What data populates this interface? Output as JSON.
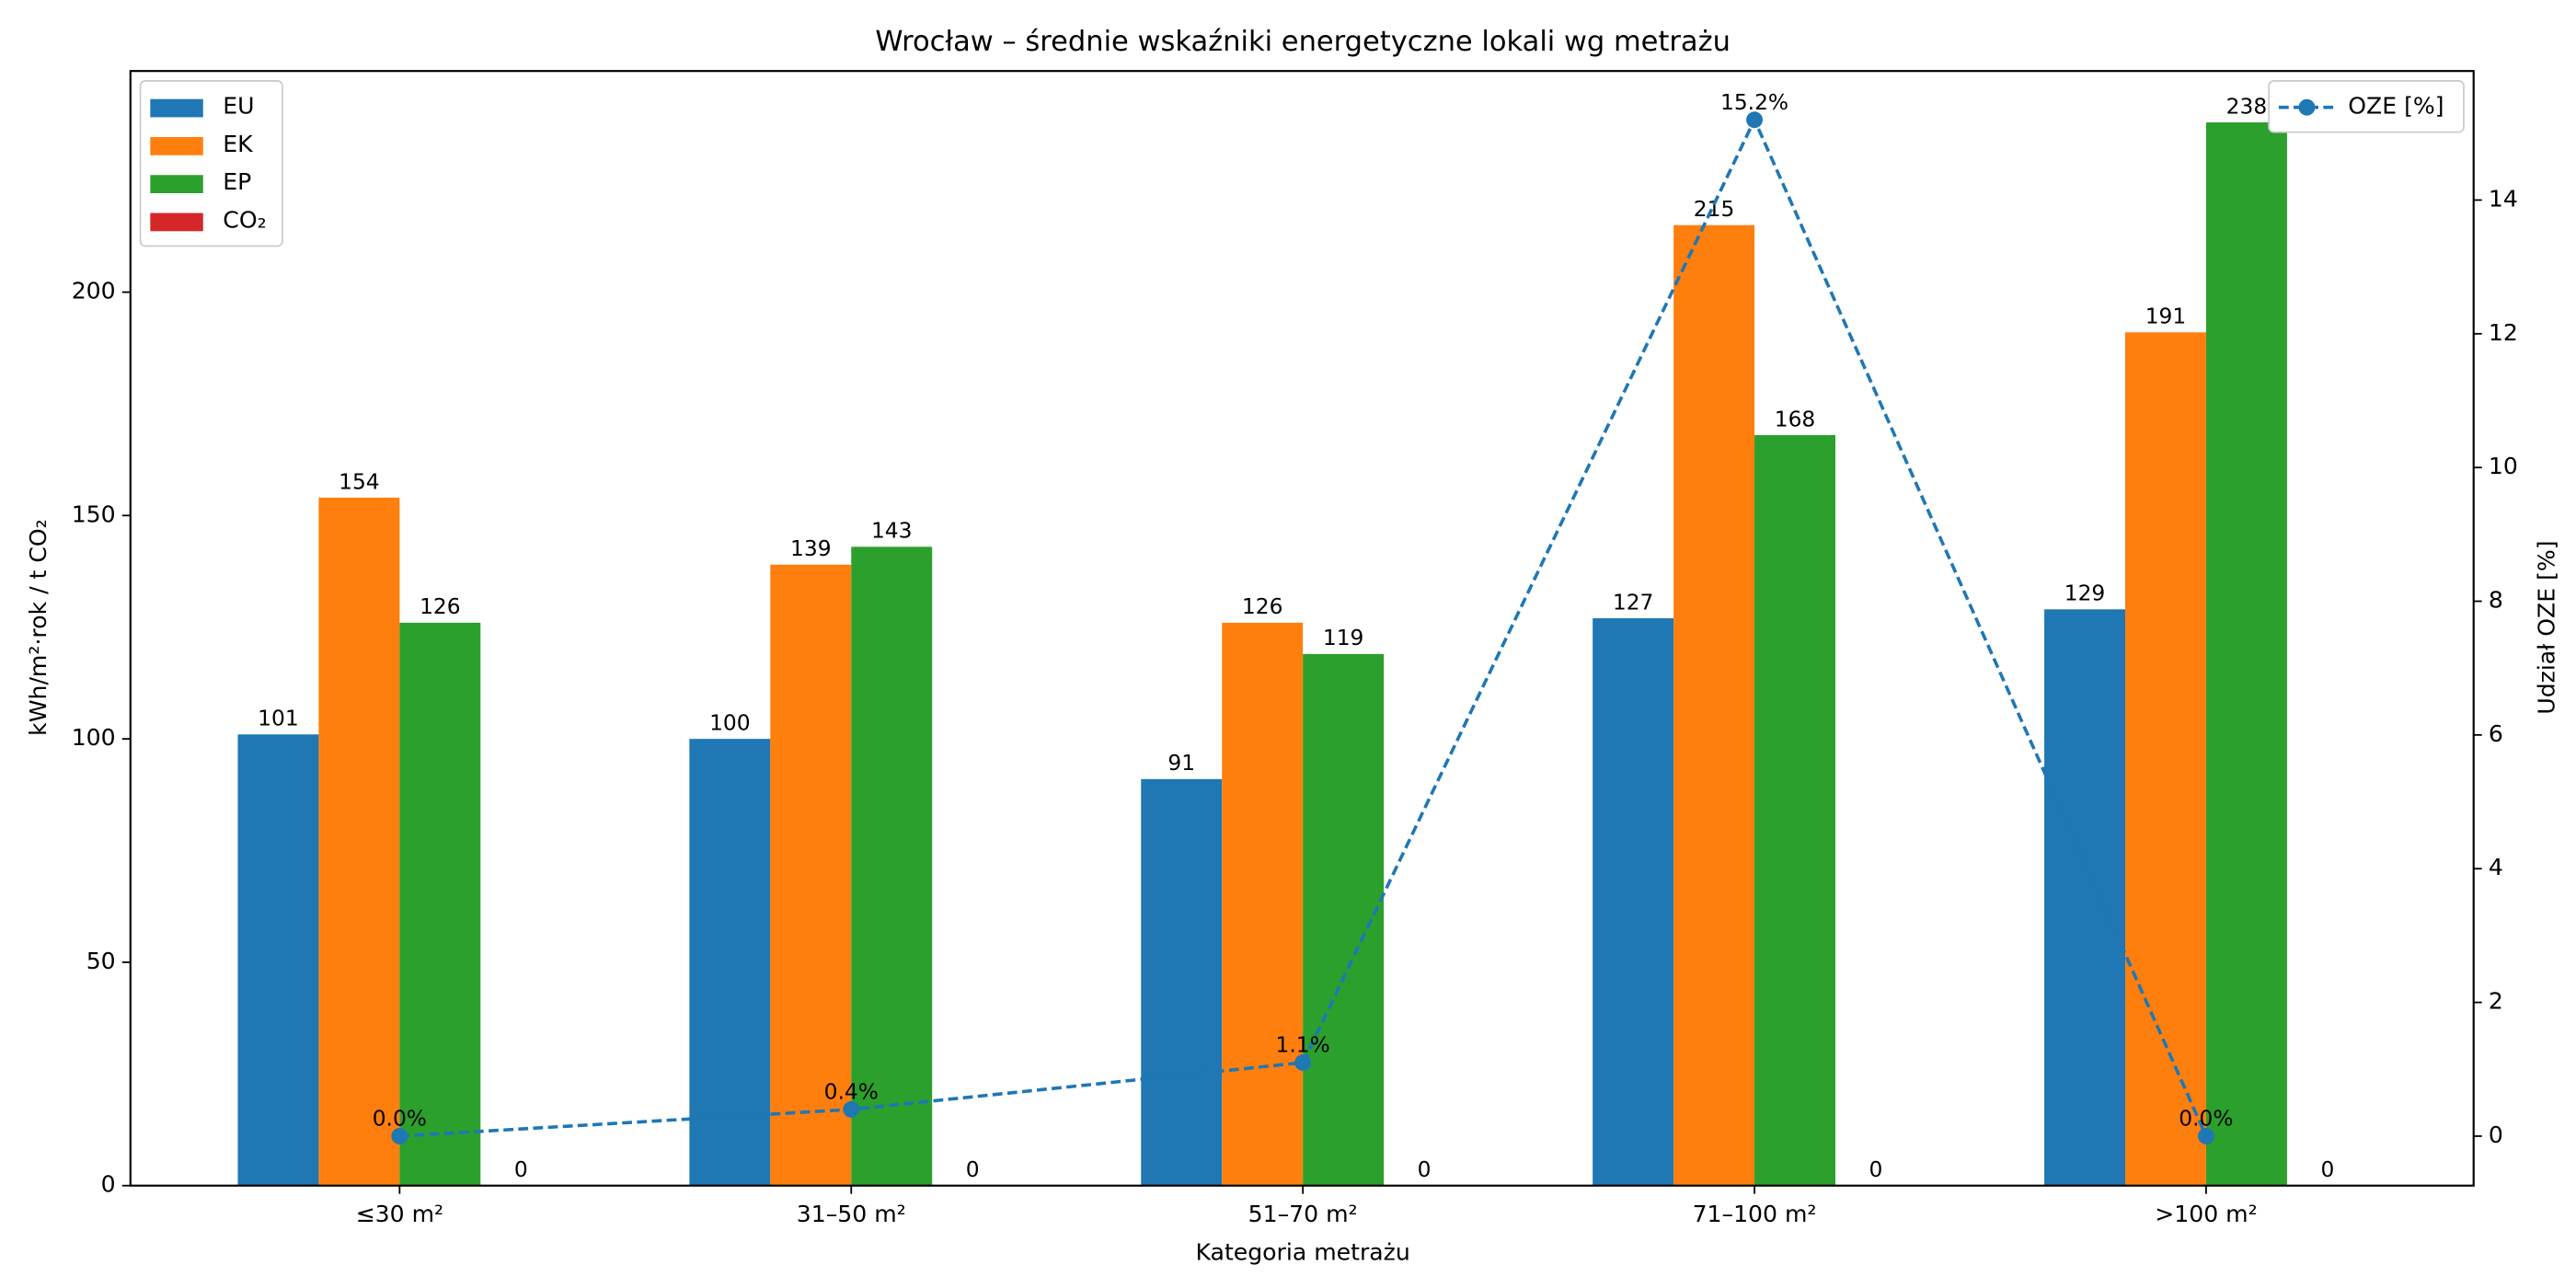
{
  "chart_data": {
    "type": "bar",
    "title": "Wrocław – średnie wskaźniki energetyczne lokali wg metrażu",
    "x_label": "Kategoria metrażu",
    "y_label": "kWh/m²·rok / t CO₂",
    "y2_label": "Udział OZE [%]",
    "categories": [
      "≤30 m²",
      "31–50 m²",
      "51–70 m²",
      "71–100 m²",
      ">100 m²"
    ],
    "series": [
      {
        "name": "EU",
        "color": "#1f77b4",
        "values": [
          101,
          100,
          91,
          127,
          129
        ]
      },
      {
        "name": "EK",
        "color": "#ff7f0e",
        "values": [
          154,
          139,
          126,
          215,
          191
        ]
      },
      {
        "name": "EP",
        "color": "#2ca02c",
        "values": [
          126,
          143,
          119,
          168,
          238
        ]
      },
      {
        "name": "CO₂",
        "color": "#d62728",
        "values": [
          0,
          0,
          0,
          0,
          0
        ]
      },
      {
        "name": "OZE [%]",
        "color": "#1f77b4",
        "type": "line",
        "axis": "y2",
        "values": [
          0.0,
          0.4,
          1.1,
          15.2,
          0.0
        ],
        "value_labels": [
          "0.0%",
          "0.4%",
          "1.1%",
          "15.2%",
          "0.0%"
        ]
      }
    ],
    "ylim": [
      0,
      249.5
    ],
    "yticks": [
      0,
      50,
      100,
      150,
      200
    ],
    "y2lim": [
      -0.74,
      15.93
    ],
    "y2ticks": [
      0,
      2,
      4,
      6,
      8,
      10,
      12,
      14
    ],
    "legend": "upper left",
    "legend_y2": "upper right"
  }
}
